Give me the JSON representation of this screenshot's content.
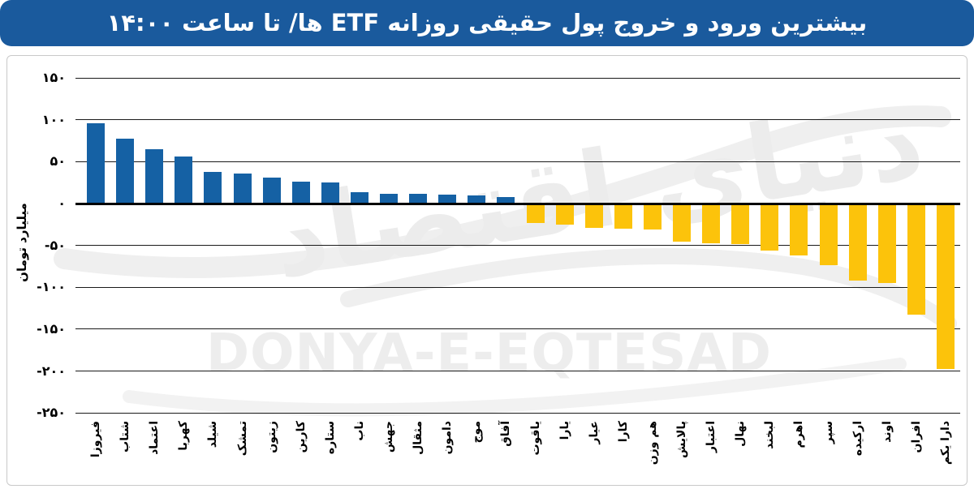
{
  "title": "بیشترین ورود و خروج پول حقیقی روزانه ETF ها/ تا ساعت ۱۴:۰۰",
  "watermark": {
    "persian": "دنیای اقتصاد",
    "latin": "DONYA-E-EQTESAD"
  },
  "y_axis": {
    "label": "میلیارد تومان",
    "ticks": [
      {
        "value": 150,
        "label": "۱۵۰"
      },
      {
        "value": 100,
        "label": "۱۰۰"
      },
      {
        "value": 50,
        "label": "۵۰"
      },
      {
        "value": 0,
        "label": "۰"
      },
      {
        "value": -50,
        "label": "-۵۰"
      },
      {
        "value": -100,
        "label": "-۱۰۰"
      },
      {
        "value": -150,
        "label": "-۱۵۰"
      },
      {
        "value": -200,
        "label": "-۲۰۰"
      },
      {
        "value": -250,
        "label": "-۲۵۰"
      }
    ]
  },
  "chart_data": {
    "type": "bar",
    "title": "بیشترین ورود و خروج پول حقیقی روزانه ETF ها/ تا ساعت ۱۴:۰۰",
    "xlabel": "",
    "ylabel": "میلیارد تومان",
    "ylim": [
      -250,
      150
    ],
    "grid": true,
    "legend": "none",
    "categories": [
      "فیروزا",
      "شتاب",
      "اعتماد",
      "کهربا",
      "شیلد",
      "تمشک",
      "زیتون",
      "کارین",
      "ستاره",
      "ناب",
      "جهش",
      "مثقال",
      "دامون",
      "موج",
      "آفاق",
      "یاقوت",
      "یارا",
      "عیار",
      "کارا",
      "هم وزن",
      "پالایش",
      "اعتبار",
      "نهال",
      "لبخند",
      "اهرم",
      "سپر",
      "ارکیده",
      "اوند",
      "افران",
      "دارا یکم"
    ],
    "values": [
      96,
      77,
      65,
      56,
      38,
      36,
      31,
      26,
      25,
      14,
      12,
      12,
      11,
      10,
      8,
      -23,
      -25,
      -29,
      -30,
      -31,
      -46,
      -47,
      -48,
      -56,
      -62,
      -74,
      -92,
      -95,
      -133,
      -198
    ],
    "positive_color": "#1561a4",
    "negative_color": "#fcc30b"
  },
  "colors": {
    "title_bar": "#1a5a9d",
    "title_text": "#ffffff",
    "panel_border": "#c9c9c9",
    "gridline": "#1a1a1a",
    "watermark": "#ededed"
  }
}
